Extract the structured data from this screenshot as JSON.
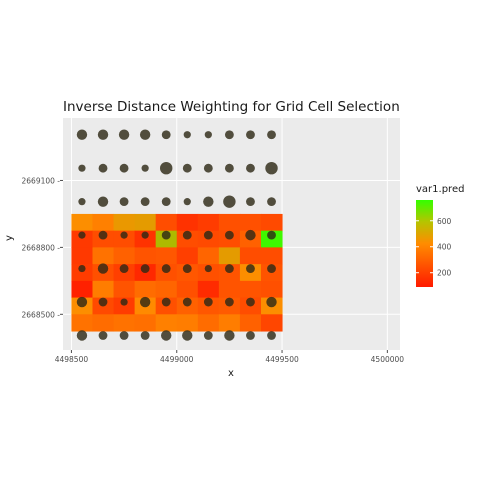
{
  "chart_data": {
    "type": "heatmap",
    "title": "Inverse Distance Weighting for Grid Cell Selection",
    "xlabel": "x",
    "ylabel": "y",
    "xlim": [
      4498460,
      4500060
    ],
    "ylim": [
      2668340,
      2669380
    ],
    "x_ticks": [
      4498500,
      4499000,
      4499500,
      4500000
    ],
    "x_tick_labels": [
      "4498500",
      "4499000",
      "4499500",
      "4500000"
    ],
    "y_ticks": [
      2668500,
      2668800,
      2669100
    ],
    "y_tick_labels": [
      "2668500 -",
      "2668800 -",
      "2669100 -"
    ],
    "grid": true,
    "legend": {
      "title": "var1.pred",
      "position": "right",
      "ticks": [
        200,
        400,
        600
      ],
      "tick_labels": [
        "200",
        "400",
        "600"
      ],
      "range": [
        90,
        760
      ]
    },
    "color_scale": {
      "low": "#ff1a00",
      "mid": "#ff8c00",
      "high": "#33ff00"
    },
    "raster": {
      "x_start": 4498500,
      "x_step": 100,
      "y_start": 2668425,
      "y_step": 75,
      "columns": 10,
      "rows_top_to_bottom": [
        [
          430,
          390,
          460,
          470,
          240,
          160,
          190,
          250,
          250,
          230
        ],
        [
          180,
          240,
          240,
          160,
          560,
          240,
          230,
          240,
          300,
          740
        ],
        [
          180,
          350,
          300,
          260,
          270,
          200,
          310,
          470,
          240,
          240
        ],
        [
          190,
          250,
          200,
          130,
          250,
          270,
          250,
          260,
          430,
          260
        ],
        [
          110,
          380,
          260,
          330,
          310,
          250,
          140,
          260,
          260,
          250
        ],
        [
          430,
          230,
          190,
          420,
          250,
          300,
          270,
          280,
          240,
          430
        ],
        [
          350,
          330,
          350,
          340,
          390,
          380,
          330,
          380,
          300,
          220
        ]
      ]
    },
    "points": {
      "x_values": [
        4498550,
        4498650,
        4498750,
        4498850,
        4498950,
        4499050,
        4499150,
        4499250,
        4499350,
        4499450
      ],
      "rows_top_to_bottom": [
        {
          "y": 2669305,
          "sizes": [
            3,
            3,
            3,
            3,
            2,
            1,
            1,
            2,
            2,
            2
          ]
        },
        {
          "y": 2669155,
          "sizes": [
            1,
            2,
            2,
            1,
            4,
            2,
            2,
            2,
            2,
            4
          ]
        },
        {
          "y": 2669005,
          "sizes": [
            1,
            3,
            2,
            2,
            2,
            1,
            3,
            4,
            2,
            2
          ]
        },
        {
          "y": 2668855,
          "sizes": [
            1,
            2,
            1,
            1,
            2,
            2,
            2,
            2,
            3,
            2
          ]
        },
        {
          "y": 2668705,
          "sizes": [
            1,
            3,
            2,
            2,
            2,
            2,
            1,
            2,
            2,
            2
          ]
        },
        {
          "y": 2668555,
          "sizes": [
            3,
            2,
            1,
            3,
            2,
            2,
            2,
            2,
            2,
            3
          ]
        },
        {
          "y": 2668405,
          "sizes": [
            3,
            2,
            2,
            2,
            3,
            3,
            2,
            3,
            2,
            2
          ]
        }
      ]
    }
  }
}
